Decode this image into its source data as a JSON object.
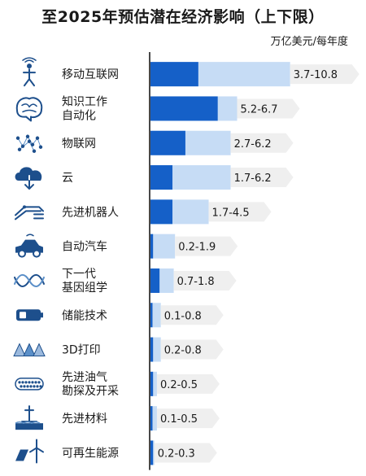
{
  "chart_data": {
    "type": "bar",
    "title": "至2025年预估潜在经济影响（上下限）",
    "unit": "万亿美元/每年度",
    "xlim": [
      0,
      11.5
    ],
    "colors": {
      "low": "#1560c8",
      "high": "#c6dcf5",
      "tag": "#efefef",
      "axis": "#1a1a1a",
      "icon": "#1d4f8c"
    },
    "categories": [
      {
        "label": [
          "移动互联网"
        ],
        "range_label": "3.7-10.8",
        "low": 3.7,
        "high": 10.8,
        "icon": "mobile-person-icon"
      },
      {
        "label": [
          "知识工作",
          "自动化"
        ],
        "range_label": "5.2-6.7",
        "low": 5.2,
        "high": 6.7,
        "icon": "brain-icon"
      },
      {
        "label": [
          "物联网"
        ],
        "range_label": "2.7-6.2",
        "low": 2.7,
        "high": 6.2,
        "icon": "network-dots-icon"
      },
      {
        "label": [
          "云"
        ],
        "range_label": "1.7-6.2",
        "low": 1.7,
        "high": 6.2,
        "icon": "cloud-icon"
      },
      {
        "label": [
          "先进机器人"
        ],
        "range_label": "1.7-4.5",
        "low": 1.7,
        "high": 4.5,
        "icon": "robot-arm-icon"
      },
      {
        "label": [
          "自动汽车"
        ],
        "range_label": "0.2-1.9",
        "low": 0.2,
        "high": 1.9,
        "icon": "car-icon"
      },
      {
        "label": [
          "下一代",
          "基因组学"
        ],
        "range_label": "0.7-1.8",
        "low": 0.7,
        "high": 1.8,
        "icon": "dna-icon"
      },
      {
        "label": [
          "储能技术"
        ],
        "range_label": "0.1-0.8",
        "low": 0.1,
        "high": 0.8,
        "icon": "battery-icon"
      },
      {
        "label": [
          "3D打印"
        ],
        "range_label": "0.2-0.8",
        "low": 0.2,
        "high": 0.8,
        "icon": "pyramids-icon"
      },
      {
        "label": [
          "先进油气",
          "勘探及开采"
        ],
        "range_label": "0.2-0.5",
        "low": 0.2,
        "high": 0.5,
        "icon": "pipe-icon"
      },
      {
        "label": [
          "先进材料"
        ],
        "range_label": "0.1-0.5",
        "low": 0.1,
        "high": 0.5,
        "icon": "oil-rig-icon"
      },
      {
        "label": [
          "可再生能源"
        ],
        "range_label": "0.2-0.3",
        "low": 0.2,
        "high": 0.3,
        "icon": "solar-wind-icon"
      }
    ]
  }
}
